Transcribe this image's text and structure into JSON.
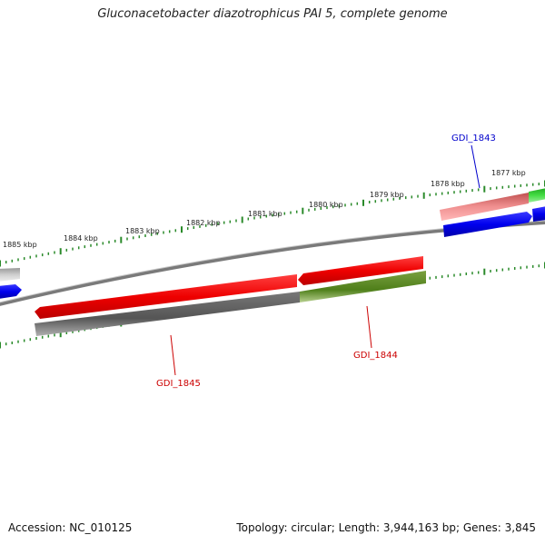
{
  "title": "Gluconacetobacter diazotrophicus PAI 5, complete genome",
  "footer": {
    "accession": "Accession: NC_010125",
    "summary": "Topology: circular; Length: 3,944,163 bp; Genes: 3,845"
  },
  "kbp_labels": [
    "1877 kbp",
    "1878 kbp",
    "1879 kbp",
    "1880 kbp",
    "1881 kbp",
    "1882 kbp",
    "1883 kbp",
    "1884 kbp",
    "1885 kbp"
  ],
  "genes": [
    {
      "label": "GDI_1843",
      "color": "#0000cc"
    },
    {
      "label": "GDI_1844",
      "color": "#cc0000"
    },
    {
      "label": "GDI_1845",
      "color": "#cc0000"
    }
  ],
  "colors": {
    "backbone": "#808080",
    "tick": "#2a8a2a",
    "forward_cds": "#ff0000",
    "reverse_cds": "#0000ff",
    "pink_feature": "#e88080",
    "green_feature": "#44cc44",
    "olive_feature": "#5a8a22",
    "gray_feature": "#606060"
  }
}
